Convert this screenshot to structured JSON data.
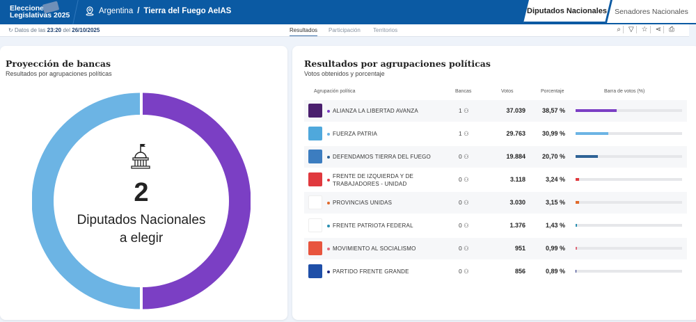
{
  "header": {
    "logo_line1": "Elecciones",
    "logo_line2": "Legislativas 2025",
    "crumb_country": "Argentina",
    "crumb_sep": "/",
    "crumb_region": "Tierra del Fuego AeIAS",
    "tabs": [
      {
        "label": "Diputados Nacionales",
        "active": true
      },
      {
        "label": "Senadores Nacionales",
        "active": false
      }
    ]
  },
  "subheader": {
    "date_prefix": "Datos de las",
    "time": "23:20",
    "date_mid": "del",
    "date": "26/10/2025",
    "nav": [
      "Resultados",
      "Participación",
      "Territorios"
    ]
  },
  "left": {
    "title": "Proyección de bancas",
    "subtitle": "Resultados por agrupaciones políticas",
    "count": "2",
    "label1": "Diputados Nacionales",
    "label2": "a elegir",
    "segments": [
      {
        "party": "ALIANZA LA LIBERTAD AVANZA",
        "seats": 1,
        "color": "#7b3fc4"
      },
      {
        "party": "FUERZA PATRIA",
        "seats": 1,
        "color": "#6cb4e4"
      }
    ]
  },
  "right": {
    "title": "Resultados por agrupaciones políticas",
    "subtitle": "Votos obtenidos y porcentaje",
    "columns": [
      "Agrupación política",
      "Bancas",
      "Votos",
      "Porcentaje",
      "Barra de votos (%)"
    ],
    "rows": [
      {
        "name": "ALIANZA LA LIBERTAD AVANZA",
        "seats": "1",
        "votes": "37.039",
        "pct": "38,57 %",
        "value": 38.57,
        "color": "#7b3fc4",
        "logo": "#4a1f6e"
      },
      {
        "name": "FUERZA PATRIA",
        "seats": "1",
        "votes": "29.763",
        "pct": "30,99 %",
        "value": 30.99,
        "color": "#6cb4e4",
        "logo": "#4fa8dc"
      },
      {
        "name": "DEFENDAMOS TIERRA DEL FUEGO",
        "seats": "0",
        "votes": "19.884",
        "pct": "20,70 %",
        "value": 20.7,
        "color": "#2f6396",
        "logo": "#3c7dc0"
      },
      {
        "name": "FRENTE DE IZQUIERDA Y DE TRABAJADORES - UNIDAD",
        "seats": "0",
        "votes": "3.118",
        "pct": "3,24 %",
        "value": 3.24,
        "color": "#e0393e",
        "logo": "#e0393e"
      },
      {
        "name": "PROVINCIAS UNIDAS",
        "seats": "0",
        "votes": "3.030",
        "pct": "3,15 %",
        "value": 3.15,
        "color": "#e06a2c",
        "logo": "#ffffff"
      },
      {
        "name": "FRENTE PATRIOTA FEDERAL",
        "seats": "0",
        "votes": "1.376",
        "pct": "1,43 %",
        "value": 1.43,
        "color": "#2a8fb0",
        "logo": "#ffffff"
      },
      {
        "name": "MOVIMIENTO AL SOCIALISMO",
        "seats": "0",
        "votes": "951",
        "pct": "0,99 %",
        "value": 0.99,
        "color": "#e06a7a",
        "logo": "#e8553e"
      },
      {
        "name": "PARTIDO FRENTE GRANDE",
        "seats": "0",
        "votes": "856",
        "pct": "0,89 %",
        "value": 0.89,
        "color": "#1f2a80",
        "logo": "#1f4fa8"
      }
    ]
  }
}
